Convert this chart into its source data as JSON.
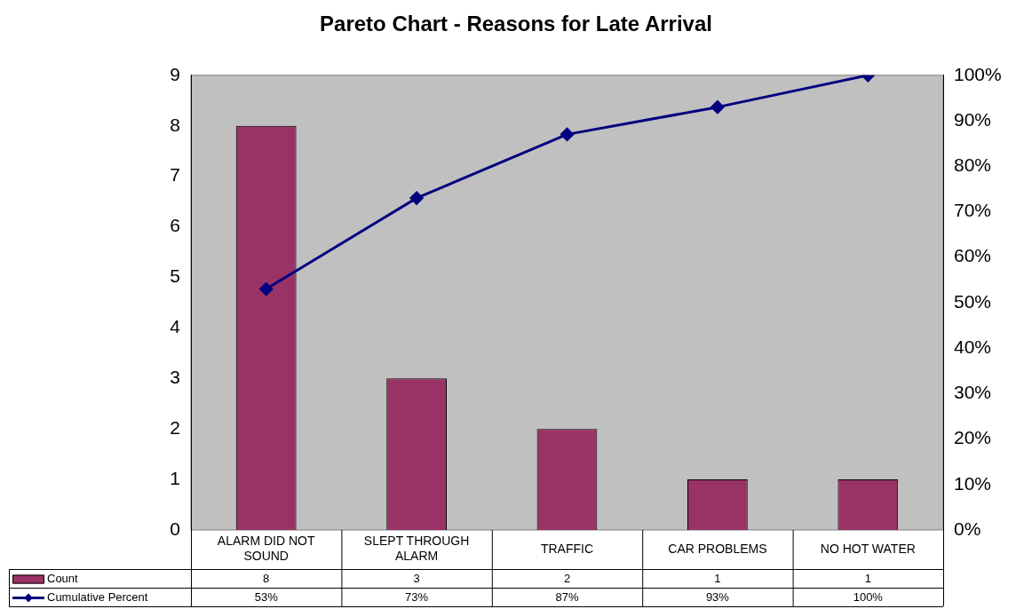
{
  "chart_data": {
    "type": "bar",
    "title": "Pareto Chart - Reasons for Late Arrival",
    "categories": [
      "ALARM DID NOT SOUND",
      "SLEPT THROUGH ALARM",
      "TRAFFIC",
      "CAR PROBLEMS",
      "NO HOT WATER"
    ],
    "series": [
      {
        "name": "Count",
        "color": "#993366",
        "values": [
          8,
          3,
          2,
          1,
          1
        ],
        "value_labels": [
          "8",
          "3",
          "2",
          "1",
          "1"
        ]
      },
      {
        "name": "Cumulative Percent",
        "type": "line",
        "axis": "y2",
        "color": "#000080",
        "marker": "diamond",
        "values": [
          53,
          73,
          87,
          93,
          100
        ],
        "value_labels": [
          "53%",
          "73%",
          "87%",
          "93%",
          "100%"
        ]
      }
    ],
    "ylim": [
      0,
      9
    ],
    "yticks": [
      0,
      1,
      2,
      3,
      4,
      5,
      6,
      7,
      8,
      9
    ],
    "y2lim": [
      0,
      100
    ],
    "y2ticks": [
      {
        "value": 0,
        "label": "0%"
      },
      {
        "value": 10,
        "label": "10%"
      },
      {
        "value": 20,
        "label": "20%"
      },
      {
        "value": 30,
        "label": "30%"
      },
      {
        "value": 40,
        "label": "40%"
      },
      {
        "value": 50,
        "label": "50%"
      },
      {
        "value": 60,
        "label": "60%"
      },
      {
        "value": 70,
        "label": "70%"
      },
      {
        "value": 80,
        "label": "80%"
      },
      {
        "value": 90,
        "label": "90%"
      },
      {
        "value": 100,
        "label": "100%"
      }
    ],
    "grid": false,
    "legend": "bottom"
  }
}
